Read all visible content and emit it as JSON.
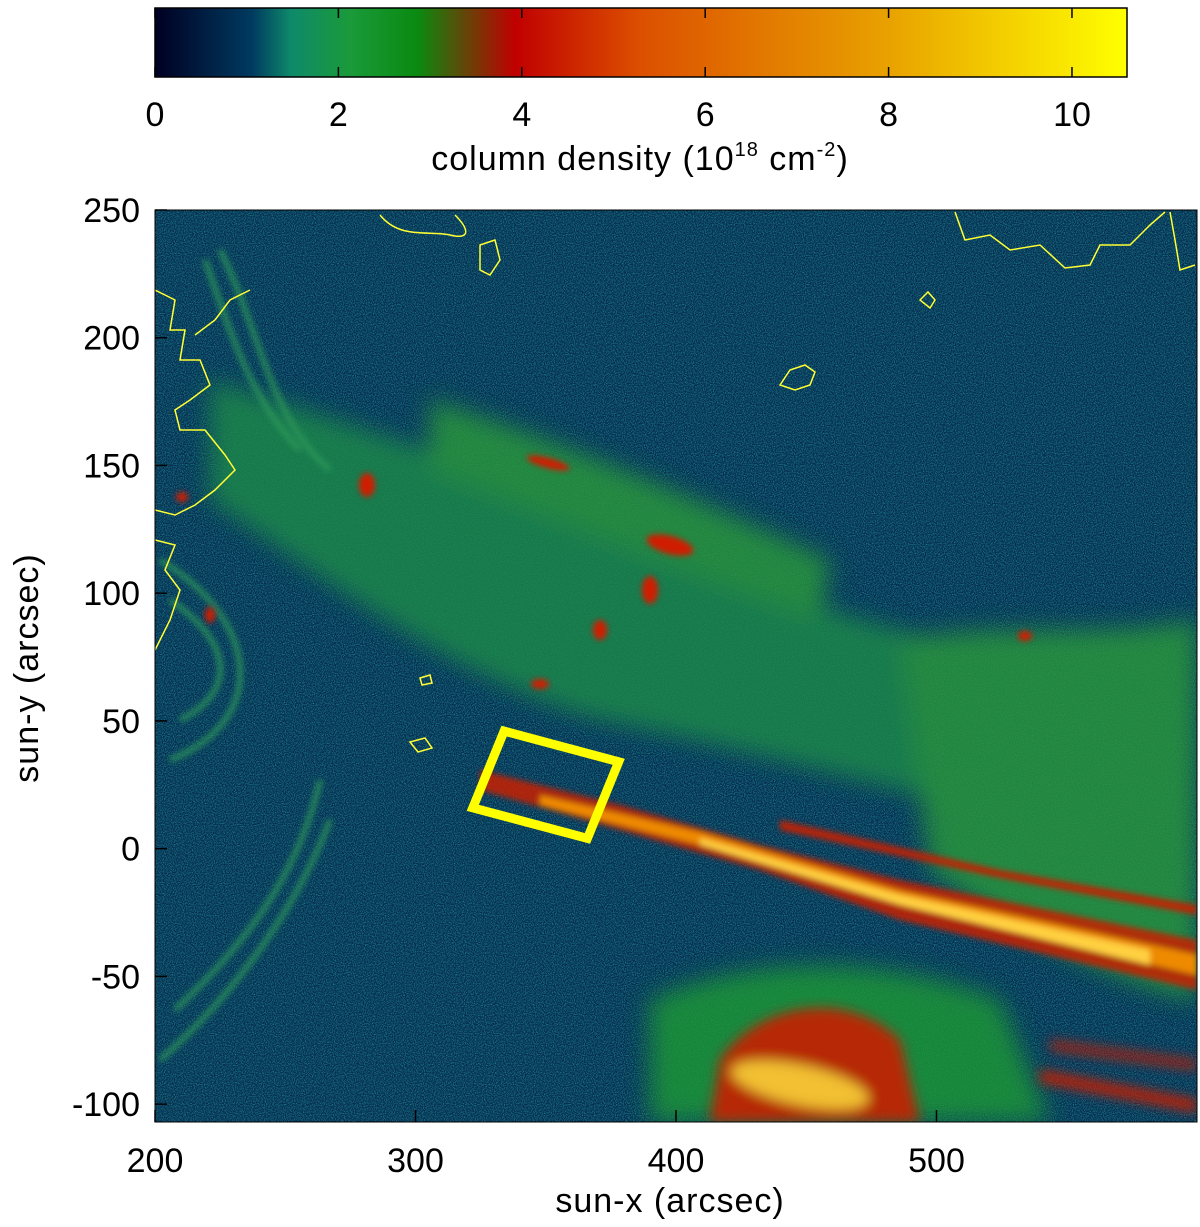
{
  "colorbar": {
    "title_pre": "column density (10",
    "title_exp": "18",
    "title_mid": " cm",
    "title_exp2": "-2",
    "title_post": ")",
    "ticks": [
      "0",
      "2",
      "4",
      "6",
      "8",
      "10"
    ],
    "tick_values": [
      0,
      2,
      4,
      6,
      8,
      10
    ],
    "range": [
      0,
      10.6
    ],
    "colors": [
      "#000022",
      "#003a60",
      "#0e8a6a",
      "#1a9a3a",
      "#0a8a10",
      "#c00000",
      "#dc5000",
      "#e8a000",
      "#ffff00"
    ]
  },
  "map": {
    "xlabel": "sun-x (arcsec)",
    "ylabel": "sun-y (arcsec)",
    "x_ticks": [
      "200",
      "300",
      "400",
      "500"
    ],
    "x_tick_values": [
      200,
      300,
      400,
      500
    ],
    "y_ticks": [
      "250",
      "200",
      "150",
      "100",
      "50",
      "0",
      "-50",
      "-100"
    ],
    "y_tick_values": [
      250,
      200,
      150,
      100,
      50,
      0,
      -50,
      -100
    ],
    "xlim": [
      200,
      600
    ],
    "ylim": [
      -107,
      250
    ],
    "box_color": "#ffff00",
    "contour_color": "#ffff33",
    "highlight_box": {
      "corners": [
        [
          334,
          46
        ],
        [
          378,
          34
        ],
        [
          366,
          4
        ],
        [
          322,
          16
        ]
      ]
    }
  }
}
